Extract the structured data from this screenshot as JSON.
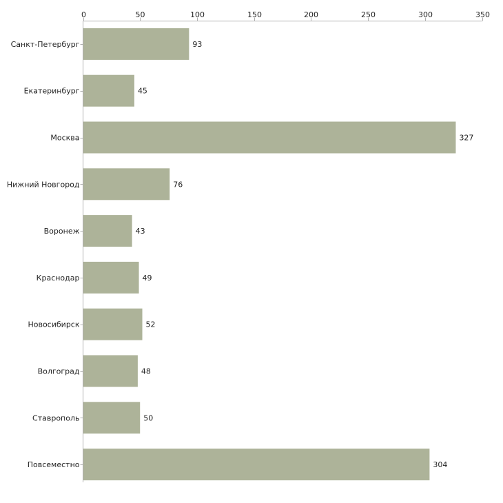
{
  "chart_data": {
    "type": "bar",
    "orientation": "horizontal",
    "categories": [
      "Санкт-Петербург",
      "Екатеринбург",
      "Москва",
      "Нижний Новгород",
      "Воронеж",
      "Краснодар",
      "Новосибирск",
      "Волгоград",
      "Ставрополь",
      "Повсеместно"
    ],
    "values": [
      93,
      45,
      327,
      76,
      43,
      49,
      52,
      48,
      50,
      304
    ],
    "xticks": [
      0,
      50,
      100,
      150,
      200,
      250,
      300,
      350
    ],
    "xlim": [
      0,
      350
    ],
    "axis_position": "top",
    "grid": false,
    "bar_color": "#adb399",
    "axis_color": "#b0b0b0",
    "title": "",
    "xlabel": "",
    "ylabel": ""
  }
}
